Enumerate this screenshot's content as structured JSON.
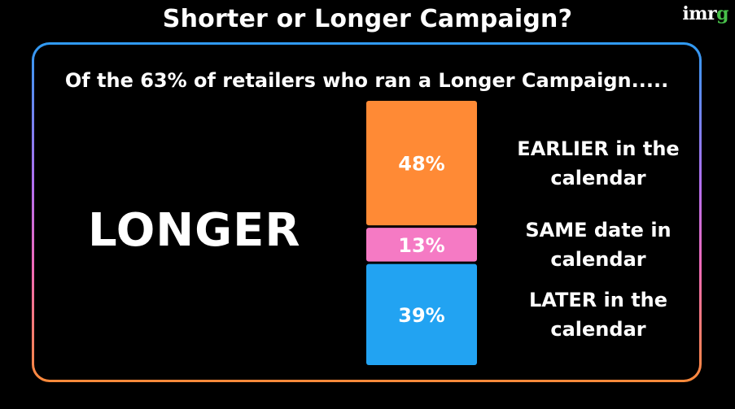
{
  "header": {
    "title": "Shorter or Longer Campaign?",
    "logo": {
      "part1": "imr",
      "part2": "g",
      "color_part2": "#47c04a"
    }
  },
  "panel": {
    "subtitle": "Of the 63% of retailers who ran a Longer Campaign.....",
    "category_label": "LONGER"
  },
  "chart_data": {
    "type": "bar",
    "stacked": true,
    "orientation": "vertical",
    "categories": [
      "LONGER"
    ],
    "series": [
      {
        "name": "EARLIER  in the calendar",
        "lines": [
          "EARLIER  in the",
          "calendar"
        ],
        "value": 48,
        "label": "48%",
        "color": "#ff8a35"
      },
      {
        "name": "SAME date in calendar",
        "lines": [
          "SAME date in",
          "calendar"
        ],
        "value": 13,
        "label": "13%",
        "color": "#f57ac4"
      },
      {
        "name": "LATER  in the calendar",
        "lines": [
          "LATER  in the",
          "calendar"
        ],
        "value": 39,
        "label": "39%",
        "color": "#22a3f2"
      }
    ],
    "total": 100,
    "legend": "right"
  }
}
